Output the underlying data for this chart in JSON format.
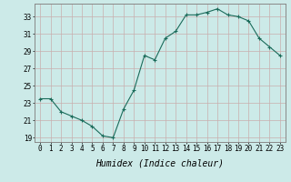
{
  "x": [
    0,
    1,
    2,
    3,
    4,
    5,
    6,
    7,
    8,
    9,
    10,
    11,
    12,
    13,
    14,
    15,
    16,
    17,
    18,
    19,
    20,
    21,
    22,
    23
  ],
  "y": [
    23.5,
    23.5,
    22.0,
    21.5,
    21.0,
    20.3,
    19.2,
    19.0,
    22.3,
    24.5,
    28.5,
    28.0,
    30.5,
    31.3,
    33.2,
    33.2,
    33.5,
    33.9,
    33.2,
    33.0,
    32.5,
    30.5,
    29.5,
    28.5
  ],
  "line_color": "#1a6b5a",
  "marker": "+",
  "marker_size": 3,
  "marker_linewidth": 0.8,
  "background_color": "#cceae8",
  "grid_color": "#c8aeae",
  "xlabel": "Humidex (Indice chaleur)",
  "xlabel_style": "italic",
  "ylabel": "",
  "title": "",
  "xlim": [
    -0.5,
    23.5
  ],
  "ylim": [
    18.5,
    34.5
  ],
  "yticks": [
    19,
    21,
    23,
    25,
    27,
    29,
    31,
    33
  ],
  "xticks": [
    0,
    1,
    2,
    3,
    4,
    5,
    6,
    7,
    8,
    9,
    10,
    11,
    12,
    13,
    14,
    15,
    16,
    17,
    18,
    19,
    20,
    21,
    22,
    23
  ],
  "tick_fontsize": 5.5,
  "xlabel_fontsize": 7,
  "line_width": 0.8
}
